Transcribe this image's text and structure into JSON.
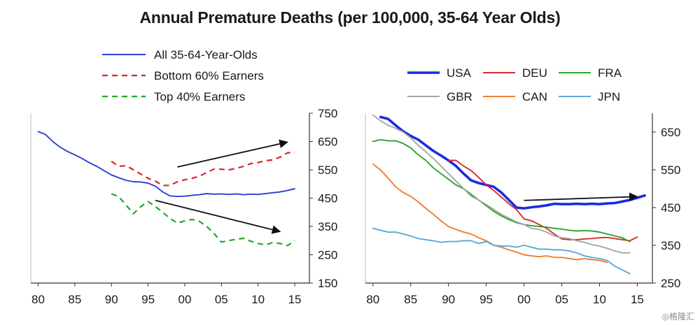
{
  "title": "Annual Premature Deaths (per 100,000, 35-64 Year Olds)",
  "watermark": "格隆汇",
  "chart_data": [
    {
      "type": "line",
      "title": "",
      "xlabel": "",
      "ylabel": "",
      "xlim": [
        1979,
        2017
      ],
      "ylim": [
        150,
        750
      ],
      "x_ticks": [
        1980,
        1985,
        1990,
        1995,
        2000,
        2005,
        2010,
        2015
      ],
      "x_tick_labels": [
        "80",
        "85",
        "90",
        "95",
        "00",
        "05",
        "10",
        "15"
      ],
      "y_ticks": [
        150,
        250,
        350,
        450,
        550,
        650,
        750
      ],
      "y_axis_side": "right",
      "grid": false,
      "legend_position": "top-left",
      "series": [
        {
          "name": "All 35-64-Year-Olds",
          "color": "#2b3fd6",
          "style": "solid",
          "x": [
            1980,
            1981,
            1982,
            1983,
            1984,
            1985,
            1986,
            1987,
            1988,
            1989,
            1990,
            1991,
            1992,
            1993,
            1994,
            1995,
            1996,
            1997,
            1998,
            1999,
            2000,
            2001,
            2002,
            2003,
            2004,
            2005,
            2006,
            2007,
            2008,
            2009,
            2010,
            2011,
            2012,
            2013,
            2014,
            2015
          ],
          "y": [
            685,
            675,
            650,
            630,
            615,
            603,
            590,
            575,
            562,
            547,
            532,
            522,
            513,
            508,
            507,
            503,
            492,
            472,
            458,
            456,
            457,
            460,
            462,
            466,
            464,
            465,
            463,
            465,
            462,
            464,
            463,
            466,
            469,
            472,
            477,
            483
          ]
        },
        {
          "name": "Bottom 60% Earners",
          "color": "#e0232b",
          "style": "dashed",
          "x": [
            1990,
            1991,
            1992,
            1993,
            1994,
            1995,
            1996,
            1997,
            1998,
            1999,
            2000,
            2001,
            2002,
            2003,
            2004,
            2005,
            2006,
            2007,
            2008,
            2009,
            2010,
            2011,
            2012,
            2013,
            2014,
            2015
          ],
          "y": [
            580,
            562,
            565,
            550,
            535,
            520,
            510,
            495,
            495,
            508,
            515,
            520,
            528,
            540,
            553,
            552,
            550,
            555,
            562,
            572,
            576,
            582,
            585,
            595,
            610,
            612
          ]
        },
        {
          "name": "Top 40% Earners",
          "color": "#1fa92a",
          "style": "dashed",
          "x": [
            1990,
            1991,
            1992,
            1993,
            1994,
            1995,
            1996,
            1997,
            1998,
            1999,
            2000,
            2001,
            2002,
            2003,
            2004,
            2005,
            2006,
            2007,
            2008,
            2009,
            2010,
            2011,
            2012,
            2013,
            2014,
            2015
          ],
          "y": [
            465,
            455,
            425,
            395,
            420,
            438,
            420,
            400,
            378,
            362,
            370,
            375,
            368,
            350,
            325,
            295,
            300,
            305,
            308,
            298,
            290,
            285,
            293,
            290,
            282,
            300
          ]
        }
      ],
      "annotations": [
        {
          "type": "arrow",
          "from": [
            1999,
            560
          ],
          "to": [
            2014,
            648
          ]
        },
        {
          "type": "arrow",
          "from": [
            1996,
            442
          ],
          "to": [
            2013,
            332
          ]
        }
      ]
    },
    {
      "type": "line",
      "title": "",
      "xlabel": "",
      "ylabel": "",
      "xlim": [
        1979,
        2017
      ],
      "ylim": [
        250,
        700
      ],
      "x_ticks": [
        1980,
        1985,
        1990,
        1995,
        2000,
        2005,
        2010,
        2015
      ],
      "x_tick_labels": [
        "80",
        "85",
        "90",
        "95",
        "00",
        "05",
        "10",
        "15"
      ],
      "y_ticks": [
        250,
        350,
        450,
        550,
        650
      ],
      "y_axis_side": "right",
      "grid": false,
      "legend_position": "top",
      "series": [
        {
          "name": "USA",
          "color": "#1b2be0",
          "style": "solid",
          "bold": true,
          "x": [
            1981,
            1982,
            1983,
            1984,
            1985,
            1986,
            1987,
            1988,
            1989,
            1990,
            1991,
            1992,
            1993,
            1994,
            1995,
            1996,
            1997,
            1998,
            1999,
            2000,
            2001,
            2002,
            2003,
            2004,
            2005,
            2006,
            2007,
            2008,
            2009,
            2010,
            2011,
            2012,
            2013,
            2014,
            2015,
            2016
          ],
          "y": [
            690,
            685,
            668,
            652,
            640,
            630,
            615,
            600,
            588,
            575,
            560,
            540,
            522,
            515,
            510,
            505,
            490,
            470,
            450,
            448,
            451,
            453,
            456,
            460,
            459,
            459,
            460,
            459,
            460,
            459,
            461,
            462,
            466,
            470,
            476,
            482
          ]
        },
        {
          "name": "DEU",
          "color": "#d92b2b",
          "style": "solid",
          "x": [
            1990,
            1991,
            1992,
            1993,
            1994,
            1995,
            1996,
            1997,
            1998,
            1999,
            2000,
            2001,
            2002,
            2003,
            2004,
            2005,
            2006,
            2007,
            2008,
            2009,
            2010,
            2011,
            2012,
            2013,
            2014,
            2015
          ],
          "y": [
            575,
            575,
            560,
            548,
            530,
            510,
            495,
            478,
            460,
            445,
            420,
            415,
            405,
            395,
            380,
            367,
            365,
            365,
            367,
            368,
            370,
            371,
            368,
            365,
            362,
            372
          ]
        },
        {
          "name": "FRA",
          "color": "#2ea32e",
          "style": "solid",
          "x": [
            1980,
            1981,
            1982,
            1983,
            1984,
            1985,
            1986,
            1987,
            1988,
            1989,
            1990,
            1991,
            1992,
            1993,
            1994,
            1995,
            1996,
            1997,
            1998,
            1999,
            2000,
            2001,
            2002,
            2003,
            2004,
            2005,
            2006,
            2007,
            2008,
            2009,
            2010,
            2011,
            2012,
            2013,
            2014
          ],
          "y": [
            625,
            630,
            627,
            627,
            620,
            608,
            590,
            575,
            555,
            540,
            525,
            510,
            500,
            485,
            470,
            455,
            440,
            428,
            418,
            410,
            405,
            402,
            400,
            398,
            395,
            393,
            390,
            388,
            389,
            388,
            385,
            380,
            375,
            370,
            360
          ]
        },
        {
          "name": "GBR",
          "color": "#a6a6a6",
          "style": "solid",
          "x": [
            1980,
            1981,
            1982,
            1983,
            1984,
            1985,
            1986,
            1987,
            1988,
            1989,
            1990,
            1991,
            1992,
            1993,
            1994,
            1995,
            1996,
            1997,
            1998,
            1999,
            2000,
            2001,
            2002,
            2003,
            2004,
            2005,
            2006,
            2007,
            2008,
            2009,
            2010,
            2011,
            2012,
            2013,
            2014
          ],
          "y": [
            695,
            680,
            668,
            660,
            650,
            635,
            615,
            598,
            580,
            560,
            540,
            520,
            500,
            480,
            470,
            458,
            445,
            432,
            422,
            412,
            405,
            395,
            392,
            385,
            375,
            370,
            368,
            362,
            358,
            352,
            348,
            342,
            335,
            330,
            330
          ]
        },
        {
          "name": "CAN",
          "color": "#f07f2f",
          "style": "solid",
          "x": [
            1980,
            1981,
            1982,
            1983,
            1984,
            1985,
            1986,
            1987,
            1988,
            1989,
            1990,
            1991,
            1992,
            1993,
            1994,
            1995,
            1996,
            1997,
            1998,
            1999,
            2000,
            2001,
            2002,
            2003,
            2004,
            2005,
            2006,
            2007,
            2008,
            2009,
            2010,
            2011
          ],
          "y": [
            565,
            550,
            528,
            505,
            490,
            480,
            465,
            448,
            432,
            415,
            400,
            392,
            385,
            380,
            370,
            362,
            350,
            345,
            338,
            332,
            325,
            322,
            320,
            322,
            318,
            318,
            315,
            312,
            315,
            312,
            310,
            305
          ]
        },
        {
          "name": "JPN",
          "color": "#5aaad9",
          "style": "solid",
          "x": [
            1980,
            1981,
            1982,
            1983,
            1984,
            1985,
            1986,
            1987,
            1988,
            1989,
            1990,
            1991,
            1992,
            1993,
            1994,
            1995,
            1996,
            1997,
            1998,
            1999,
            2000,
            2001,
            2002,
            2003,
            2004,
            2005,
            2006,
            2007,
            2008,
            2009,
            2010,
            2011,
            2012,
            2013,
            2014
          ],
          "y": [
            395,
            390,
            385,
            385,
            380,
            375,
            368,
            365,
            362,
            358,
            360,
            360,
            362,
            362,
            355,
            360,
            350,
            348,
            348,
            345,
            350,
            345,
            340,
            340,
            338,
            338,
            335,
            330,
            322,
            318,
            315,
            310,
            295,
            285,
            275
          ]
        }
      ],
      "annotations": [
        {
          "type": "arrow",
          "from": [
            2000,
            469
          ],
          "to": [
            2015,
            479
          ]
        }
      ]
    }
  ]
}
